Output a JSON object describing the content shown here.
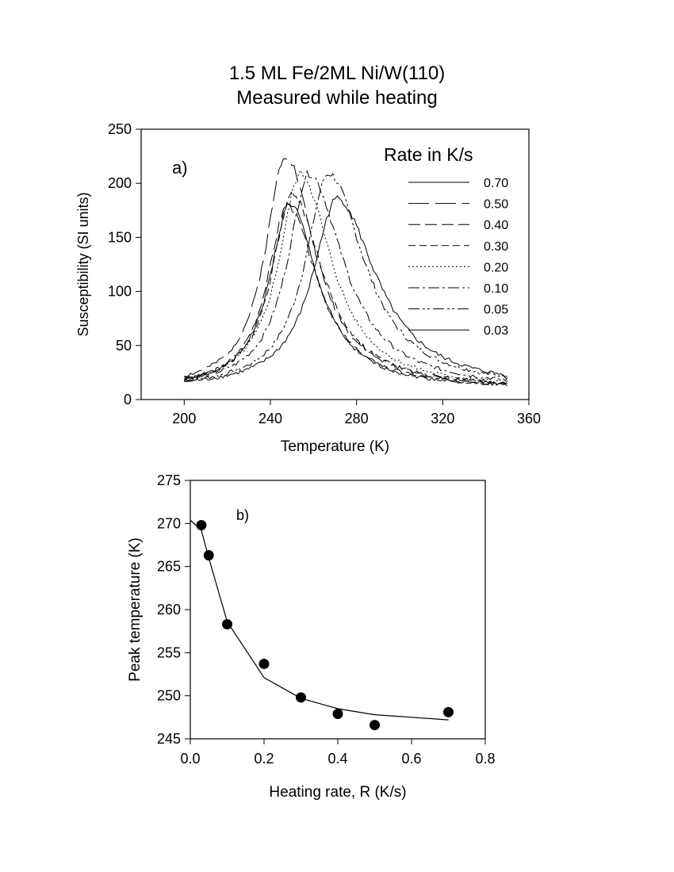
{
  "title_line1": "1.5 ML Fe/2ML Ni/W(110)",
  "title_line2": "Measured while heating",
  "chart_data": [
    {
      "type": "line",
      "panel_label": "a)",
      "xlabel": "Temperature (K)",
      "ylabel": "Susceptibility (SI units)",
      "xlim": [
        180,
        360
      ],
      "ylim": [
        0,
        250
      ],
      "xticks": [
        200,
        240,
        280,
        320,
        360
      ],
      "yticks": [
        0,
        50,
        100,
        150,
        200,
        250
      ],
      "legend_title": "Rate in K/s",
      "legend_position": "top-right",
      "x_range": [
        200,
        350
      ],
      "series": [
        {
          "name": "0.70",
          "dash": "",
          "peak_x": 249,
          "peak_y": 181,
          "wl": 13,
          "wr": 18,
          "base": 10,
          "seed": 1
        },
        {
          "name": "0.50",
          "dash": "26 8",
          "peak_x": 247,
          "peak_y": 226,
          "wl": 13,
          "wr": 19,
          "base": 10,
          "seed": 2
        },
        {
          "name": "0.40",
          "dash": "15 6",
          "peak_x": 248,
          "peak_y": 180,
          "wl": 13,
          "wr": 19,
          "base": 10,
          "seed": 3
        },
        {
          "name": "0.30",
          "dash": "9 5",
          "peak_x": 250,
          "peak_y": 190,
          "wl": 13,
          "wr": 20,
          "base": 10,
          "seed": 4
        },
        {
          "name": "0.20",
          "dash": "2 3",
          "peak_x": 254,
          "peak_y": 209,
          "wl": 14,
          "wr": 20,
          "base": 10,
          "seed": 5
        },
        {
          "name": "0.10",
          "dash": "14 4 3 4",
          "peak_x": 258,
          "peak_y": 209,
          "wl": 14,
          "wr": 22,
          "base": 10,
          "seed": 6
        },
        {
          "name": "0.05",
          "dash": "14 4 3 3 3 4",
          "peak_x": 267,
          "peak_y": 209,
          "wl": 15,
          "wr": 23,
          "base": 10,
          "seed": 7
        },
        {
          "name": "0.03",
          "dash": "",
          "peak_x": 271,
          "peak_y": 186,
          "wl": 16,
          "wr": 25,
          "base": 10,
          "seed": 8
        }
      ]
    },
    {
      "type": "scatter",
      "panel_label": "b)",
      "xlabel": "Heating rate, R (K/s)",
      "ylabel": "Peak temperature (K)",
      "xlim": [
        0,
        0.8
      ],
      "ylim": [
        245,
        275
      ],
      "xticks": [
        0.0,
        0.2,
        0.4,
        0.6,
        0.8
      ],
      "xtick_labels": [
        "0.0",
        "0.2",
        "0.4",
        "0.6",
        "0.8"
      ],
      "yticks": [
        245,
        250,
        255,
        260,
        265,
        270,
        275
      ],
      "points": [
        {
          "x": 0.03,
          "y": 269.8
        },
        {
          "x": 0.05,
          "y": 266.3
        },
        {
          "x": 0.1,
          "y": 258.3
        },
        {
          "x": 0.2,
          "y": 253.7
        },
        {
          "x": 0.3,
          "y": 249.8
        },
        {
          "x": 0.4,
          "y": 247.9
        },
        {
          "x": 0.5,
          "y": 246.6
        },
        {
          "x": 0.7,
          "y": 248.1
        }
      ],
      "fit_line": [
        {
          "x": 0.0,
          "y": 270.4
        },
        {
          "x": 0.03,
          "y": 269.2
        },
        {
          "x": 0.05,
          "y": 266.0
        },
        {
          "x": 0.1,
          "y": 258.6
        },
        {
          "x": 0.2,
          "y": 252.1
        },
        {
          "x": 0.3,
          "y": 249.7
        },
        {
          "x": 0.4,
          "y": 248.5
        },
        {
          "x": 0.5,
          "y": 247.8
        },
        {
          "x": 0.7,
          "y": 247.2
        }
      ]
    }
  ]
}
